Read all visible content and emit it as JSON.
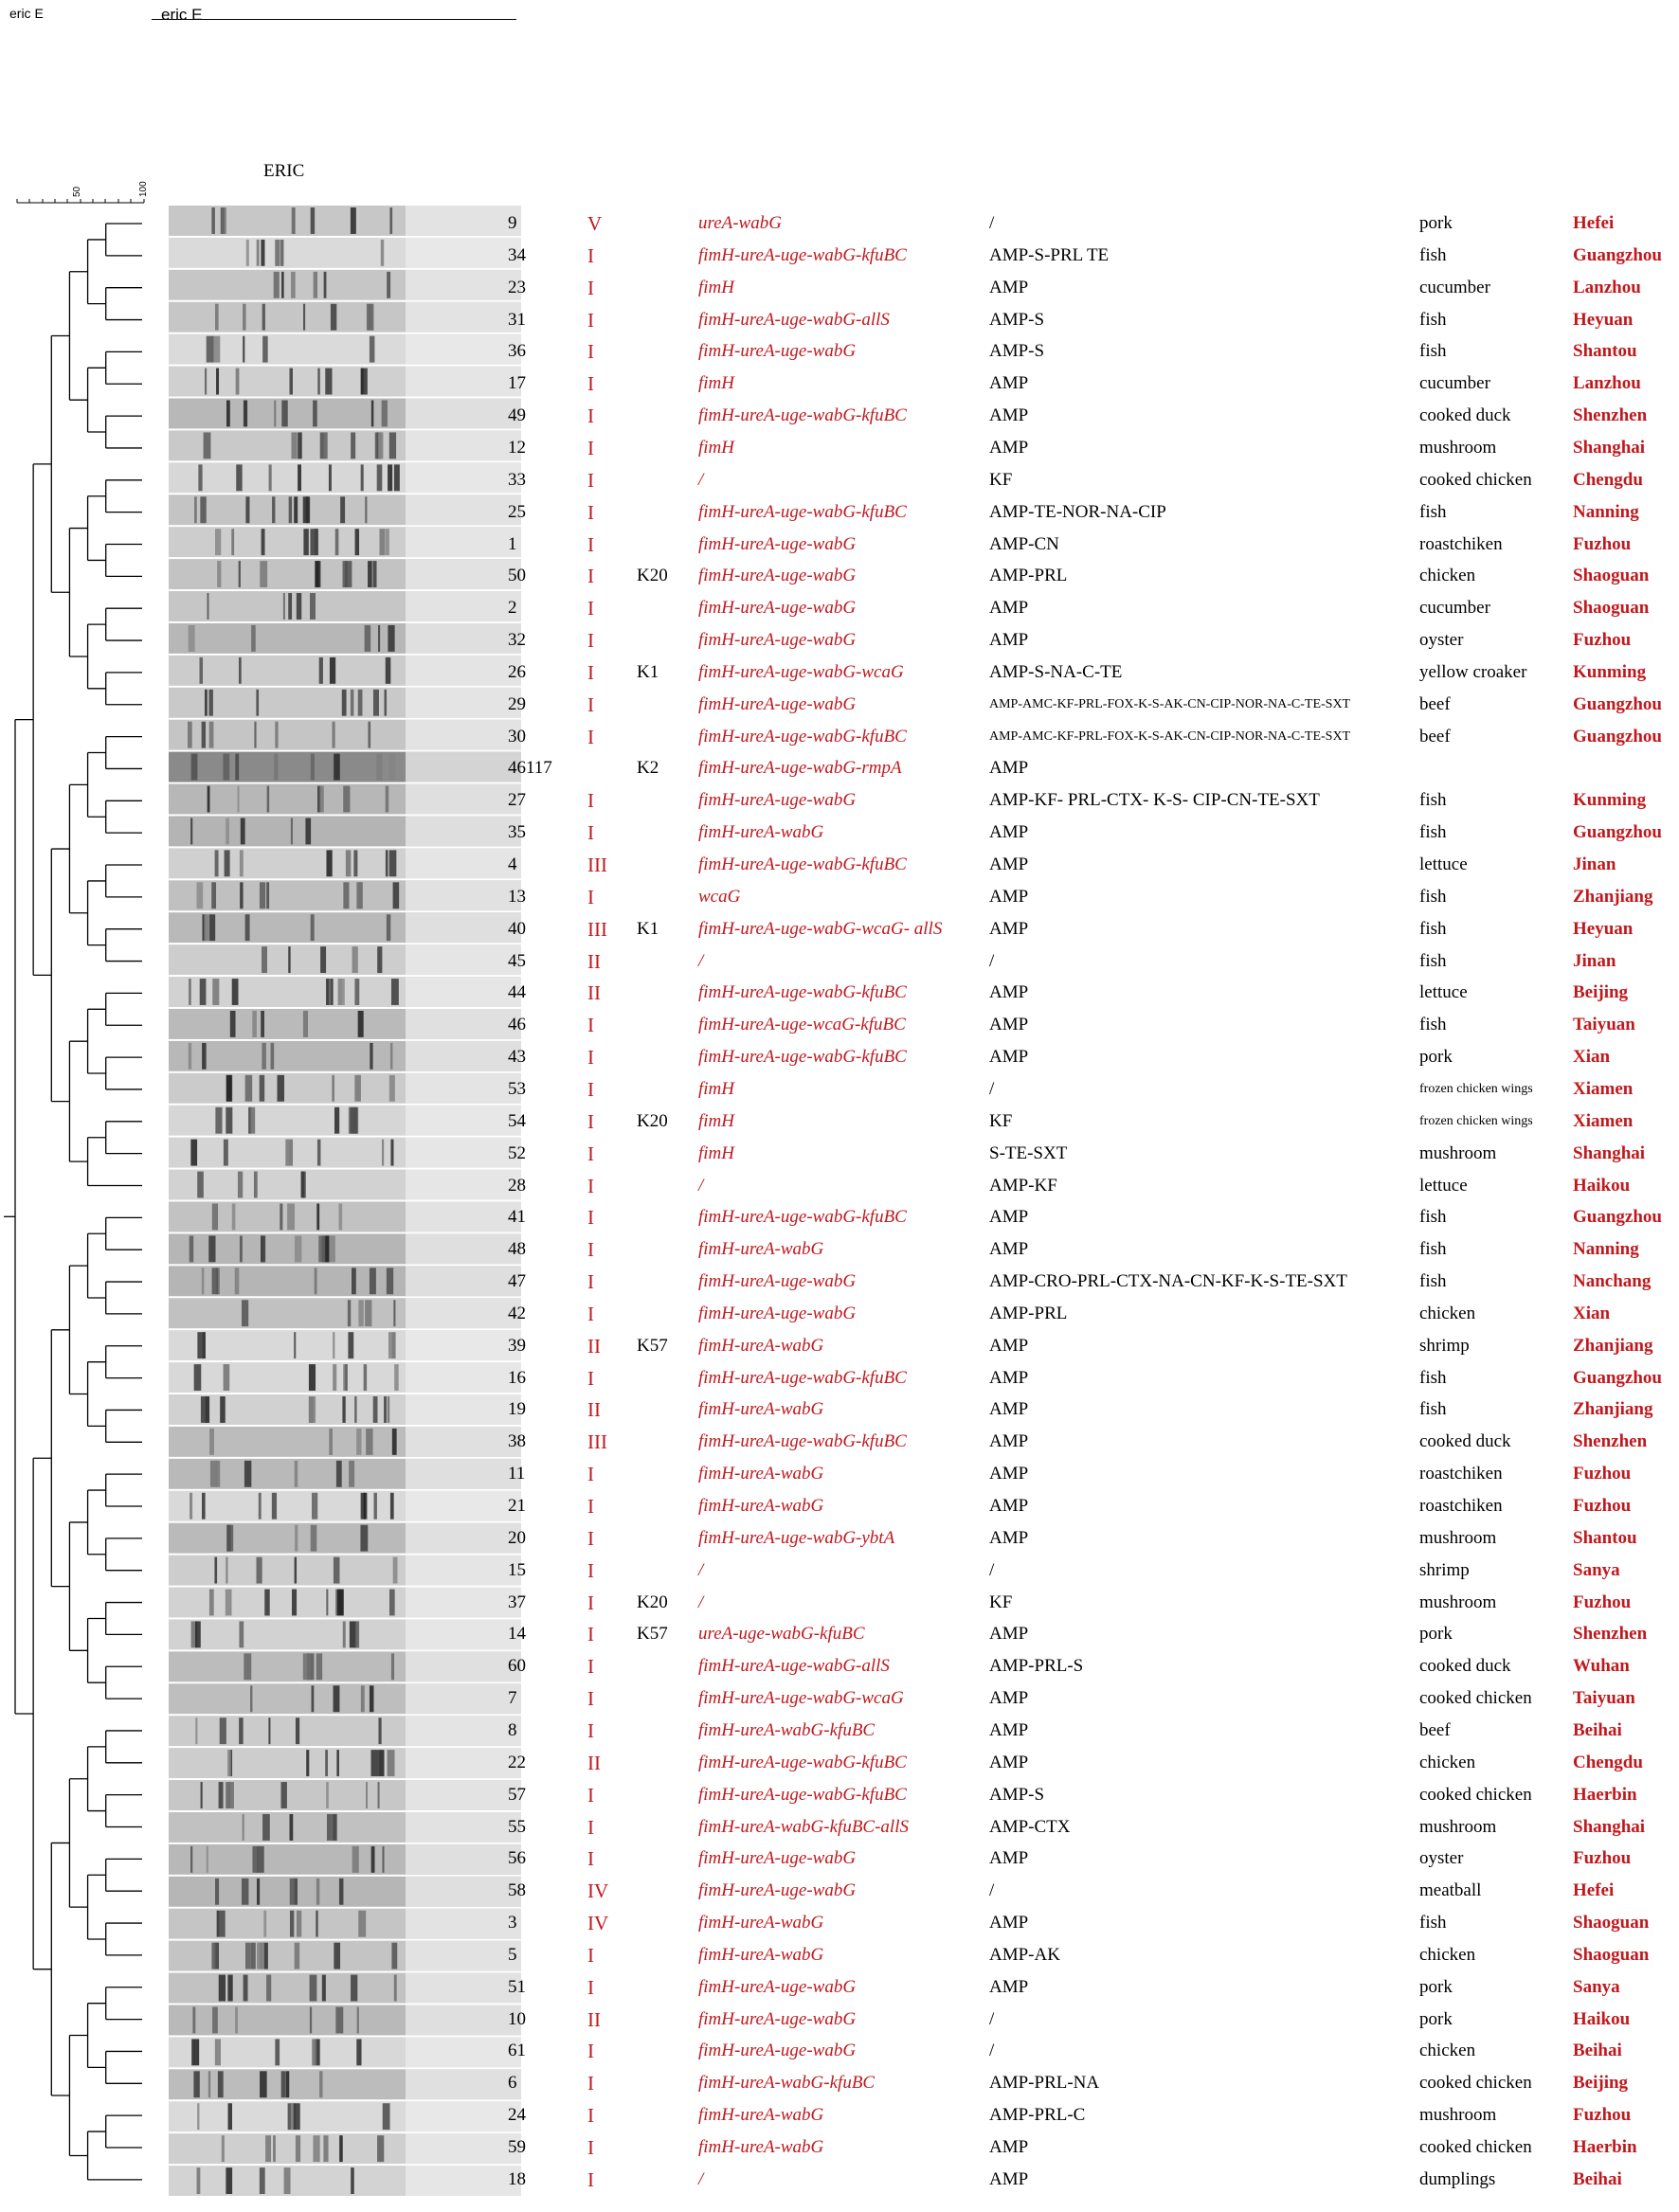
{
  "header": {
    "left_label": "eric E",
    "mid_label": "eric E"
  },
  "gel": {
    "title": "ERIC"
  },
  "scale": {
    "tick_50": "50",
    "tick_100": "100"
  },
  "rows": [
    {
      "id": "9",
      "cluster": "V",
      "k": "",
      "vir": "ureA-wabG",
      "amr": "/",
      "source": "pork",
      "city": "Hefei"
    },
    {
      "id": "34",
      "cluster": "I",
      "k": "",
      "vir": "fimH-ureA-uge-wabG-kfuBC",
      "amr": "AMP-S-PRL TE",
      "source": "fish",
      "city": "Guangzhou"
    },
    {
      "id": "23",
      "cluster": "I",
      "k": "",
      "vir": "fimH",
      "amr": "AMP",
      "source": "cucumber",
      "city": "Lanzhou"
    },
    {
      "id": "31",
      "cluster": "I",
      "k": "",
      "vir": "fimH-ureA-uge-wabG-allS",
      "amr": "AMP-S",
      "source": "fish",
      "city": "Heyuan"
    },
    {
      "id": "36",
      "cluster": "I",
      "k": "",
      "vir": "fimH-ureA-uge-wabG",
      "amr": "AMP-S",
      "source": "fish",
      "city": "Shantou"
    },
    {
      "id": "17",
      "cluster": "I",
      "k": "",
      "vir": "fimH",
      "amr": "AMP",
      "source": "cucumber",
      "city": "Lanzhou"
    },
    {
      "id": "49",
      "cluster": "I",
      "k": "",
      "vir": "fimH-ureA-uge-wabG-kfuBC",
      "amr": "AMP",
      "source": "cooked duck",
      "city": "Shenzhen"
    },
    {
      "id": "12",
      "cluster": "I",
      "k": "",
      "vir": "fimH",
      "amr": "AMP",
      "source": "mushroom",
      "city": "Shanghai"
    },
    {
      "id": "33",
      "cluster": "I",
      "k": "",
      "vir": "/",
      "amr": "KF",
      "source": "cooked chicken",
      "city": "Chengdu"
    },
    {
      "id": "25",
      "cluster": "I",
      "k": "",
      "vir": "fimH-ureA-uge-wabG-kfuBC",
      "amr": "AMP-TE-NOR-NA-CIP",
      "source": "fish",
      "city": "Nanning"
    },
    {
      "id": "1",
      "cluster": "I",
      "k": "",
      "vir": "fimH-ureA-uge-wabG",
      "amr": "AMP-CN",
      "source": "roastchiken",
      "city": "Fuzhou"
    },
    {
      "id": "50",
      "cluster": "I",
      "k": "K20",
      "vir": "fimH-ureA-uge-wabG",
      "amr": "AMP-PRL",
      "source": "chicken",
      "city": "Shaoguan"
    },
    {
      "id": "2",
      "cluster": "I",
      "k": "",
      "vir": "fimH-ureA-uge-wabG",
      "amr": "AMP",
      "source": "cucumber",
      "city": "Shaoguan"
    },
    {
      "id": "32",
      "cluster": "I",
      "k": "",
      "vir": "fimH-ureA-uge-wabG",
      "amr": "AMP",
      "source": "oyster",
      "city": "Fuzhou"
    },
    {
      "id": "26",
      "cluster": "I",
      "k": "K1",
      "vir": "fimH-ureA-uge-wabG-wcaG",
      "amr": "AMP-S-NA-C-TE",
      "source": "yellow croaker",
      "city": "Kunming"
    },
    {
      "id": "29",
      "cluster": "I",
      "k": "",
      "vir": "fimH-ureA-uge-wabG",
      "amr": "AMP-AMC-KF-PRL-FOX-K-S-AK-CN-CIP-NOR-NA-C-TE-SXT",
      "amr_small": true,
      "source": "beef",
      "city": "Guangzhou"
    },
    {
      "id": "30",
      "cluster": "I",
      "k": "",
      "vir": "fimH-ureA-uge-wabG-kfuBC",
      "amr": "AMP-AMC-KF-PRL-FOX-K-S-AK-CN-CIP-NOR-NA-C-TE-SXT",
      "amr_small": true,
      "source": "beef",
      "city": "Guangzhou"
    },
    {
      "id": "46117",
      "cluster": "",
      "k": "K2",
      "vir": "fimH-ureA-uge-wabG-rmpA",
      "amr": "AMP",
      "source": "",
      "city": ""
    },
    {
      "id": "27",
      "cluster": "I",
      "k": "",
      "vir": "fimH-ureA-uge-wabG",
      "amr": "AMP-KF- PRL-CTX- K-S- CIP-CN-TE-SXT",
      "source": "fish",
      "city": "Kunming"
    },
    {
      "id": "35",
      "cluster": "I",
      "k": "",
      "vir": "fimH-ureA-wabG",
      "amr": "AMP",
      "source": "fish",
      "city": "Guangzhou"
    },
    {
      "id": "4",
      "cluster": "III",
      "k": "",
      "vir": "fimH-ureA-uge-wabG-kfuBC",
      "amr": "AMP",
      "source": "lettuce",
      "city": "Jinan"
    },
    {
      "id": "13",
      "cluster": "I",
      "k": "",
      "vir": "wcaG",
      "amr": "AMP",
      "source": "fish",
      "city": "Zhanjiang"
    },
    {
      "id": "40",
      "cluster": "III",
      "k": "K1",
      "vir": "fimH-ureA-uge-wabG-wcaG- allS",
      "amr": "AMP",
      "source": "fish",
      "city": "Heyuan"
    },
    {
      "id": "45",
      "cluster": "II",
      "k": "",
      "vir": "/",
      "amr": "/",
      "source": "fish",
      "city": "Jinan"
    },
    {
      "id": "44",
      "cluster": "II",
      "k": "",
      "vir": "fimH-ureA-uge-wabG-kfuBC",
      "amr": "AMP",
      "source": "lettuce",
      "city": "Beijing"
    },
    {
      "id": "46",
      "cluster": "I",
      "k": "",
      "vir": "fimH-ureA-uge-wcaG-kfuBC",
      "amr": "AMP",
      "source": "fish",
      "city": "Taiyuan"
    },
    {
      "id": "43",
      "cluster": "I",
      "k": "",
      "vir": "fimH-ureA-uge-wabG-kfuBC",
      "amr": "AMP",
      "source": "pork",
      "city": "Xian"
    },
    {
      "id": "53",
      "cluster": "I",
      "k": "",
      "vir": "fimH",
      "amr": "/",
      "source": "frozen chicken wings",
      "source_small": true,
      "city": "Xiamen"
    },
    {
      "id": "54",
      "cluster": "I",
      "k": "K20",
      "vir": "fimH",
      "amr": "KF",
      "source": "frozen chicken wings",
      "source_small": true,
      "city": "Xiamen"
    },
    {
      "id": "52",
      "cluster": "I",
      "k": "",
      "vir": "fimH",
      "amr": "S-TE-SXT",
      "source": "mushroom",
      "city": "Shanghai"
    },
    {
      "id": "28",
      "cluster": "I",
      "k": "",
      "vir": "/",
      "amr": "AMP-KF",
      "source": "lettuce",
      "city": "Haikou"
    },
    {
      "id": "41",
      "cluster": "I",
      "k": "",
      "vir": "fimH-ureA-uge-wabG-kfuBC",
      "amr": "AMP",
      "source": "fish",
      "city": "Guangzhou"
    },
    {
      "id": "48",
      "cluster": "I",
      "k": "",
      "vir": "fimH-ureA-wabG",
      "amr": "AMP",
      "source": "fish",
      "city": "Nanning"
    },
    {
      "id": "47",
      "cluster": "I",
      "k": "",
      "vir": "fimH-ureA-uge-wabG",
      "amr": "AMP-CRO-PRL-CTX-NA-CN-KF-K-S-TE-SXT",
      "source": "fish",
      "city": "Nanchang"
    },
    {
      "id": "42",
      "cluster": "I",
      "k": "",
      "vir": "fimH-ureA-uge-wabG",
      "amr": "AMP-PRL",
      "source": "chicken",
      "city": "Xian"
    },
    {
      "id": "39",
      "cluster": "II",
      "k": "K57",
      "vir": "fimH-ureA-wabG",
      "amr": "AMP",
      "source": "shrimp",
      "city": "Zhanjiang"
    },
    {
      "id": "16",
      "cluster": "I",
      "k": "",
      "vir": "fimH-ureA-uge-wabG-kfuBC",
      "amr": "AMP",
      "source": "fish",
      "city": "Guangzhou"
    },
    {
      "id": "19",
      "cluster": "II",
      "k": "",
      "vir": "fimH-ureA-wabG",
      "amr": "AMP",
      "source": "fish",
      "city": "Zhanjiang"
    },
    {
      "id": "38",
      "cluster": "III",
      "k": "",
      "vir": "fimH-ureA-uge-wabG-kfuBC",
      "amr": "AMP",
      "source": "cooked duck",
      "city": "Shenzhen"
    },
    {
      "id": "11",
      "cluster": "I",
      "k": "",
      "vir": "fimH-ureA-wabG",
      "amr": "AMP",
      "source": "roastchiken",
      "city": "Fuzhou"
    },
    {
      "id": "21",
      "cluster": "I",
      "k": "",
      "vir": "fimH-ureA-wabG",
      "amr": "AMP",
      "source": "roastchiken",
      "city": "Fuzhou"
    },
    {
      "id": "20",
      "cluster": "I",
      "k": "",
      "vir": "fimH-ureA-uge-wabG-ybtA",
      "amr": "AMP",
      "source": "mushroom",
      "city": "Shantou"
    },
    {
      "id": "15",
      "cluster": "I",
      "k": "",
      "vir": "/",
      "amr": "/",
      "source": "shrimp",
      "city": "Sanya"
    },
    {
      "id": "37",
      "cluster": "I",
      "k": "K20",
      "vir": "/",
      "amr": "KF",
      "source": "mushroom",
      "city": "Fuzhou"
    },
    {
      "id": "14",
      "cluster": "I",
      "k": "K57",
      "vir": "ureA-uge-wabG-kfuBC",
      "amr": "AMP",
      "source": "pork",
      "city": "Shenzhen"
    },
    {
      "id": "60",
      "cluster": "I",
      "k": "",
      "vir": "fimH-ureA-uge-wabG-allS",
      "amr": "AMP-PRL-S",
      "source": "cooked duck",
      "city": "Wuhan"
    },
    {
      "id": "7",
      "cluster": "I",
      "k": "",
      "vir": "fimH-ureA-uge-wabG-wcaG",
      "amr": "AMP",
      "source": "cooked chicken",
      "city": "Taiyuan"
    },
    {
      "id": "8",
      "cluster": "I",
      "k": "",
      "vir": "fimH-ureA-wabG-kfuBC",
      "amr": "AMP",
      "source": "beef",
      "city": "Beihai"
    },
    {
      "id": "22",
      "cluster": "II",
      "k": "",
      "vir": "fimH-ureA-uge-wabG-kfuBC",
      "amr": "AMP",
      "source": "chicken",
      "city": "Chengdu"
    },
    {
      "id": "57",
      "cluster": "I",
      "k": "",
      "vir": "fimH-ureA-uge-wabG-kfuBC",
      "amr": "AMP-S",
      "source": "cooked chicken",
      "city": "Haerbin"
    },
    {
      "id": "55",
      "cluster": "I",
      "k": "",
      "vir": "fimH-ureA-wabG-kfuBC-allS",
      "amr": "AMP-CTX",
      "source": "mushroom",
      "city": "Shanghai"
    },
    {
      "id": "56",
      "cluster": "I",
      "k": "",
      "vir": "fimH-ureA-uge-wabG",
      "amr": "AMP",
      "source": "oyster",
      "city": "Fuzhou"
    },
    {
      "id": "58",
      "cluster": "IV",
      "k": "",
      "vir": "fimH-ureA-uge-wabG",
      "amr": "/",
      "source": "meatball",
      "city": "Hefei"
    },
    {
      "id": "3",
      "cluster": "IV",
      "k": "",
      "vir": "fimH-ureA-wabG",
      "amr": "AMP",
      "source": "fish",
      "city": "Shaoguan"
    },
    {
      "id": "5",
      "cluster": "I",
      "k": "",
      "vir": "fimH-ureA-wabG",
      "amr": "AMP-AK",
      "source": "chicken",
      "city": "Shaoguan"
    },
    {
      "id": "51",
      "cluster": "I",
      "k": "",
      "vir": "fimH-ureA-uge-wabG",
      "amr": "AMP",
      "source": "pork",
      "city": "Sanya"
    },
    {
      "id": "10",
      "cluster": "II",
      "k": "",
      "vir": "fimH-ureA-uge-wabG",
      "amr": "/",
      "source": "pork",
      "city": "Haikou"
    },
    {
      "id": "61",
      "cluster": "I",
      "k": "",
      "vir": "fimH-ureA-uge-wabG",
      "amr": "/",
      "source": "chicken",
      "city": "Beihai"
    },
    {
      "id": "6",
      "cluster": "I",
      "k": "",
      "vir": "fimH-ureA-wabG-kfuBC",
      "amr": "AMP-PRL-NA",
      "source": "cooked chicken",
      "city": "Beijing"
    },
    {
      "id": "24",
      "cluster": "I",
      "k": "",
      "vir": "fimH-ureA-wabG",
      "amr": "AMP-PRL-C",
      "source": "mushroom",
      "city": "Fuzhou"
    },
    {
      "id": "59",
      "cluster": "I",
      "k": "",
      "vir": "fimH-ureA-wabG",
      "amr": "AMP",
      "source": "cooked chicken",
      "city": "Haerbin"
    },
    {
      "id": "18",
      "cluster": "I",
      "k": "",
      "vir": "/",
      "amr": "AMP",
      "source": "dumplings",
      "city": "Beihai"
    }
  ]
}
